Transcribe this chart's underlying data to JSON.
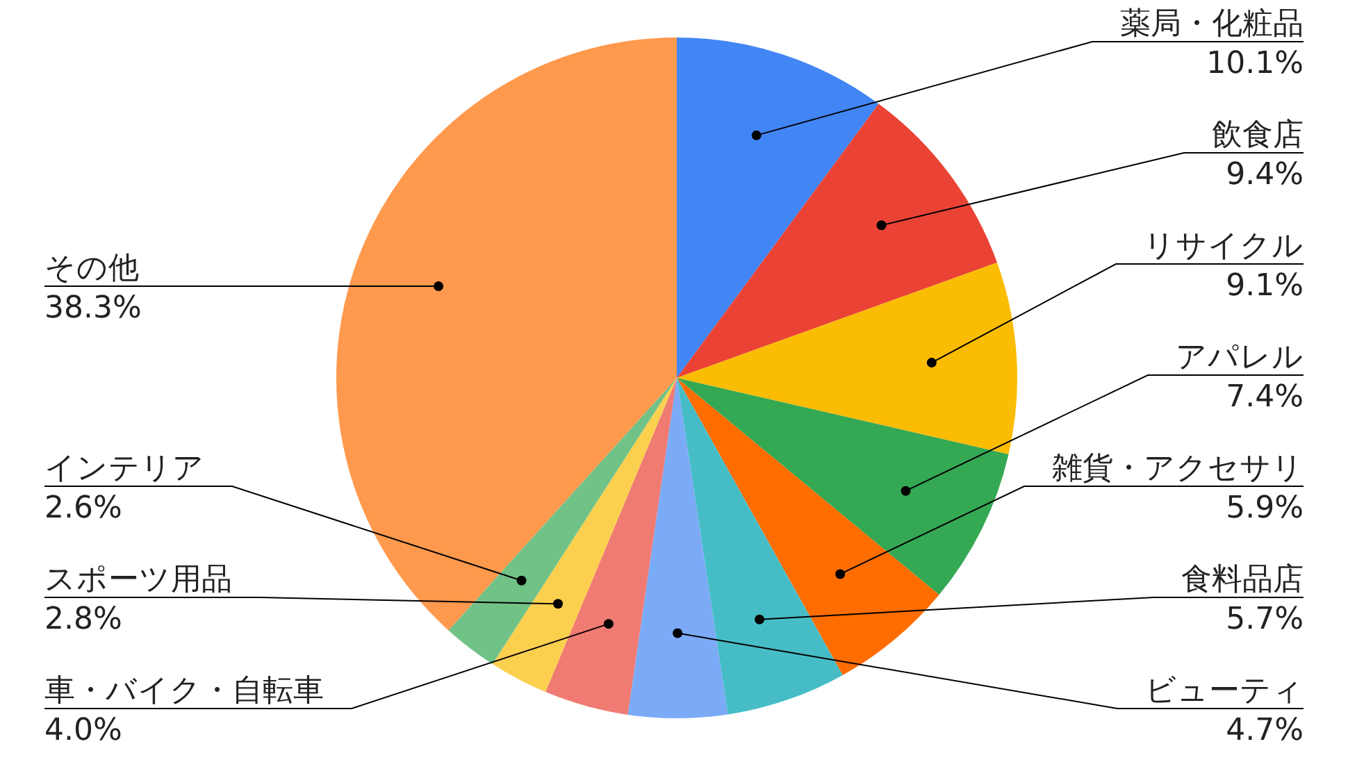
{
  "chart_data": {
    "type": "pie",
    "categories": [
      "薬局・化粧品",
      "飲食店",
      "リサイクル",
      "アパレル",
      "雑貨・アクセサリ",
      "食料品店",
      "ビューティ",
      "車・バイク・自転車",
      "スポーツ用品",
      "インテリア",
      "その他"
    ],
    "values": [
      10.1,
      9.4,
      9.1,
      7.4,
      5.9,
      5.7,
      4.7,
      4.0,
      2.8,
      2.6,
      38.3
    ],
    "value_labels": [
      "10.1%",
      "9.4%",
      "9.1%",
      "7.4%",
      "5.9%",
      "5.7%",
      "4.7%",
      "4.0%",
      "2.8%",
      "2.6%",
      "38.3%"
    ],
    "colors": [
      "#4285f4",
      "#ea4335",
      "#fbbc04",
      "#34a853",
      "#ff6d01",
      "#46bdc6",
      "#7baaf7",
      "#f07b72",
      "#fcd04f",
      "#71c287",
      "#ff994d"
    ],
    "legend": false
  }
}
